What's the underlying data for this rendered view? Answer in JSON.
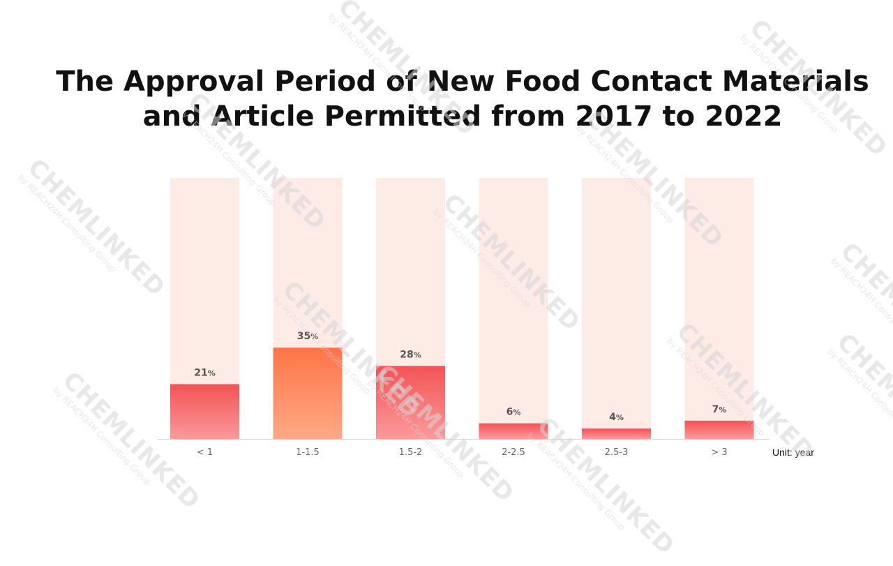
{
  "watermark": {
    "main": "CHEMLINKED",
    "sub": "by REACH24H Consulting Group"
  },
  "chart_data": {
    "type": "bar",
    "title": "The Approval Period of New Food Contact Materials and Article Permitted from 2017 to 2022",
    "categories": [
      "< 1",
      "1-1.5",
      "1.5-2",
      "2-2.5",
      "2.5-3",
      "> 3"
    ],
    "values": [
      21,
      35,
      28,
      6,
      4,
      7
    ],
    "value_unit": "%",
    "ylim": [
      0,
      100
    ],
    "unit_label": "Unit: year",
    "grid": false,
    "legend": "none",
    "colors": {
      "background_bar": "#fdece6",
      "bar_red_top": "#f45255",
      "bar_red_bottom": "#fb9a9a",
      "bar_highlight_top": "#ff7447",
      "bar_highlight_bottom": "#ffa986",
      "axis": "#d8d8d8"
    },
    "highlight_index": 1
  }
}
